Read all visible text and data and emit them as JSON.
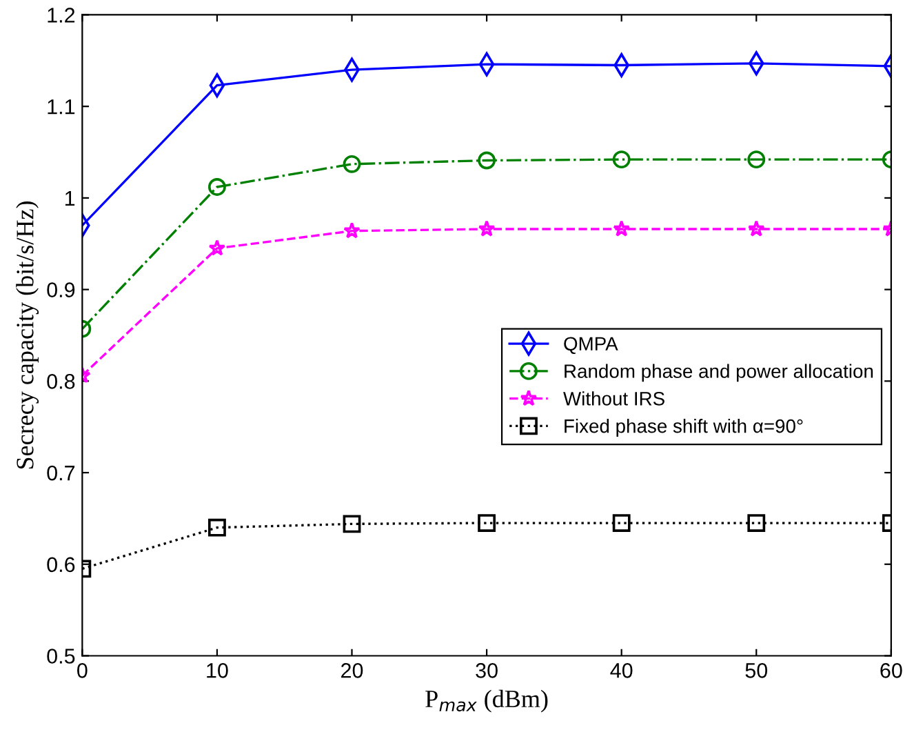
{
  "chart_data": {
    "type": "line",
    "xlabel": "P$_{max}$ (dBm)",
    "ylabel": "Secrecy capacity (bit/s/Hz)",
    "x": [
      0,
      10,
      20,
      30,
      40,
      50,
      60
    ],
    "series": [
      {
        "name": "QMPA",
        "color": "#0000ff",
        "marker": "diamond",
        "line_style": "solid",
        "values": [
          0.97,
          1.123,
          1.14,
          1.146,
          1.145,
          1.147,
          1.144
        ]
      },
      {
        "name": "Random phase and power allocation",
        "color": "#008000",
        "marker": "circle",
        "line_style": "dashdot",
        "values": [
          0.857,
          1.012,
          1.037,
          1.041,
          1.042,
          1.042,
          1.042
        ]
      },
      {
        "name": "Without IRS",
        "color": "#ff00ff",
        "marker": "star",
        "line_style": "dashed",
        "values": [
          0.806,
          0.945,
          0.964,
          0.966,
          0.966,
          0.966,
          0.966
        ]
      },
      {
        "name": "Fixed phase shift with α=90°",
        "color": "#000000",
        "marker": "square",
        "line_style": "dotted",
        "values": [
          0.595,
          0.64,
          0.644,
          0.645,
          0.645,
          0.645,
          0.645
        ]
      }
    ],
    "xlim": [
      0,
      60
    ],
    "xticks": [
      0,
      10,
      20,
      30,
      40,
      50,
      60
    ],
    "ylim": [
      0.5,
      1.2
    ],
    "yticks": [
      0.5,
      0.6,
      0.7,
      0.8,
      0.9,
      1,
      1.1,
      1.2
    ],
    "grid": false,
    "legend": "right"
  }
}
